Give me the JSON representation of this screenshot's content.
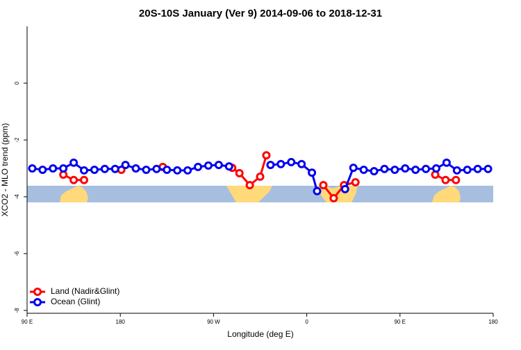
{
  "chart_data": {
    "type": "line",
    "title": "20S-10S January (Ver 9)   2014-09-06 to 2018-12-31",
    "x_label": "Longitude (deg E)",
    "y_label": "XCO2 - MLO trend (ppm)",
    "xlim": [
      90,
      540
    ],
    "xticks": [
      {
        "value": 90,
        "label": "90 E"
      },
      180,
      {
        "value": 270,
        "label": "90 W"
      },
      {
        "value": 360,
        "label": "0"
      },
      {
        "value": 450,
        "label": "90 E"
      },
      {
        "value": 540,
        "label": "180"
      }
    ],
    "ylim": [
      -8.1,
      2
    ],
    "yticks": [
      0,
      -2,
      -4,
      -6,
      -8
    ],
    "legend": "bottomleft",
    "series": [
      {
        "name": "Land (Nadir&Glint)",
        "color": "#ff0000",
        "x": [
          125,
          135,
          145,
          160,
          181,
          200,
          221,
          255,
          288,
          295,
          305,
          315,
          321,
          345,
          376,
          386,
          396,
          407,
          450,
          484,
          494,
          504
        ],
        "values": [
          -3.22,
          -3.41,
          -3.41,
          null,
          -3.05,
          null,
          -2.95,
          null,
          -2.98,
          -3.17,
          -3.59,
          -3.29,
          -2.54,
          null,
          -3.59,
          -4.05,
          -3.59,
          -3.49,
          null,
          -3.22,
          -3.41,
          -3.41
        ]
      },
      {
        "name": "Ocean (Glint)",
        "color": "#0000ee",
        "x": [
          95,
          105,
          115,
          125,
          135,
          145,
          155,
          165,
          175,
          185,
          195,
          205,
          215,
          225,
          235,
          245,
          255,
          265,
          275,
          285,
          295,
          325,
          335,
          345,
          355,
          365,
          370,
          383,
          397,
          405,
          415,
          425,
          435,
          445,
          455,
          465,
          475,
          485,
          495,
          505,
          515,
          525,
          535
        ],
        "values": [
          -3.0,
          -3.05,
          -3.0,
          -3.0,
          -2.8,
          -3.07,
          -3.05,
          -3.02,
          -3.02,
          -2.88,
          -3.0,
          -3.05,
          -3.02,
          -3.05,
          -3.07,
          -3.07,
          -2.95,
          -2.9,
          -2.88,
          -2.93,
          null,
          -2.88,
          -2.85,
          -2.78,
          -2.85,
          -3.15,
          -3.8,
          null,
          -3.73,
          -2.98,
          -3.05,
          -3.1,
          -3.02,
          -3.05,
          -3.0,
          -3.05,
          -3.02,
          -3.0,
          -2.8,
          -3.07,
          -3.05,
          -3.02,
          -3.02
        ]
      }
    ]
  }
}
